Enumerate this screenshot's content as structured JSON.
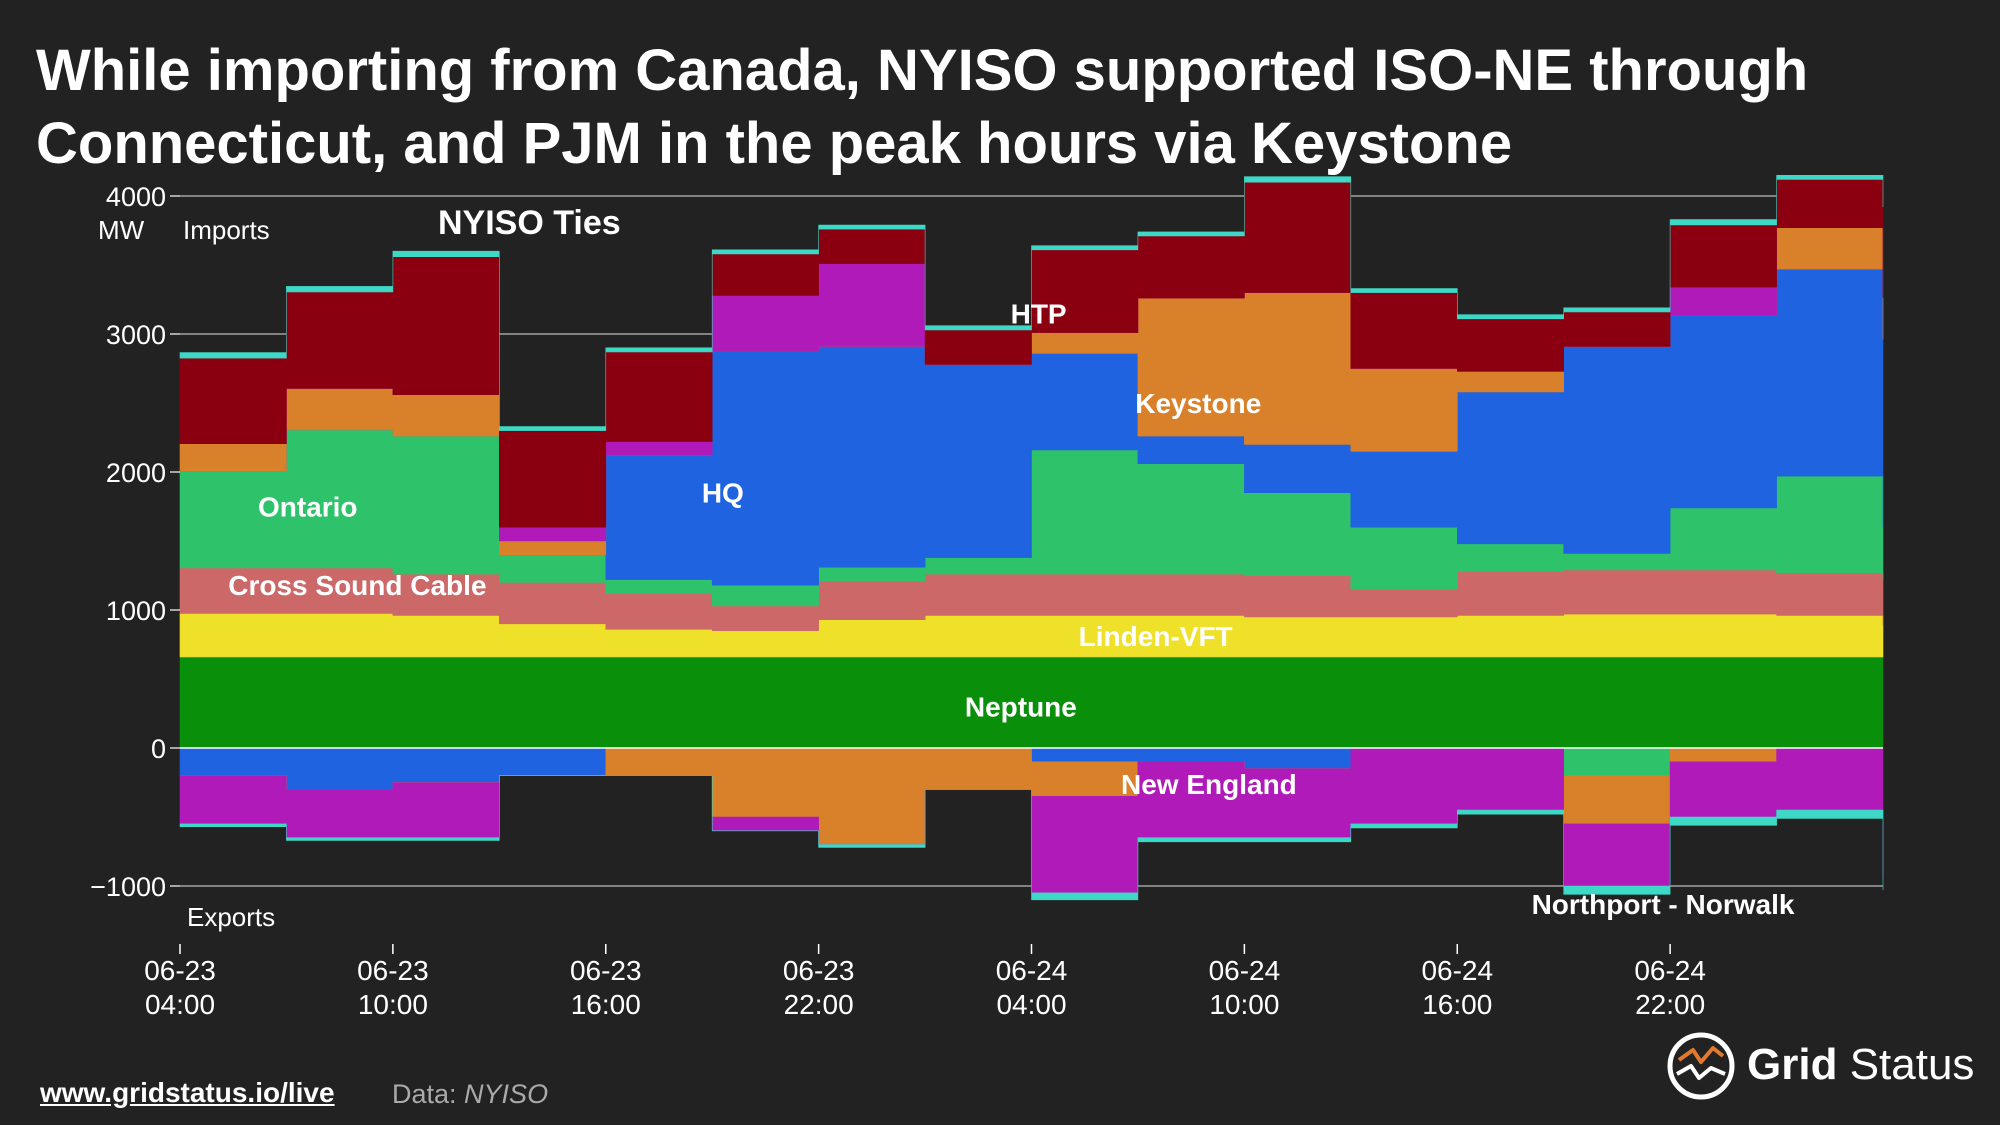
{
  "title": {
    "line1": "While importing from Canada, NYISO supported ISO-NE through",
    "line2": "Connecticut, and PJM in the peak hours via Keystone"
  },
  "footer": {
    "url": "www.gridstatus.io/live",
    "source_prefix": "Data: ",
    "source_name": "NYISO"
  },
  "logo": {
    "word1": "Grid",
    "word2": "Status"
  },
  "chart_data": {
    "type": "area",
    "stacked": true,
    "title": "NYISO Ties",
    "ylabel": "MW",
    "top_annotation": "Imports",
    "bottom_annotation": "Exports",
    "ylim": [
      -1400,
      4000
    ],
    "y_ticks": [
      4000,
      3000,
      2000,
      1000,
      0,
      -1000
    ],
    "y_tick_labels": [
      "4000",
      "3000",
      "2000",
      "1000",
      "0",
      "−1000"
    ],
    "x_hours": [
      0,
      3,
      6,
      9,
      12,
      15,
      18,
      21,
      24,
      27,
      30,
      33,
      36,
      39,
      42,
      45,
      48
    ],
    "x_range": [
      0,
      48
    ],
    "x_ticks": [
      {
        "h": 0,
        "date": "06-23",
        "time": "04:00"
      },
      {
        "h": 6,
        "date": "06-23",
        "time": "10:00"
      },
      {
        "h": 12,
        "date": "06-23",
        "time": "16:00"
      },
      {
        "h": 18,
        "date": "06-23",
        "time": "22:00"
      },
      {
        "h": 24,
        "date": "06-24",
        "time": "04:00"
      },
      {
        "h": 30,
        "date": "06-24",
        "time": "10:00"
      },
      {
        "h": 36,
        "date": "06-24",
        "time": "16:00"
      },
      {
        "h": 42,
        "date": "06-24",
        "time": "22:00"
      }
    ],
    "import_series": [
      {
        "name": "Neptune",
        "color": "#0a8f0a",
        "values": [
          660,
          660,
          660,
          660,
          660,
          660,
          660,
          660,
          660,
          660,
          660,
          660,
          660,
          660,
          660,
          660,
          660
        ]
      },
      {
        "name": "Linden-VFT",
        "color": "#efe12a",
        "values": [
          315,
          315,
          300,
          240,
          200,
          190,
          270,
          300,
          300,
          300,
          290,
          290,
          300,
          310,
          310,
          300,
          230
        ]
      },
      {
        "name": "Cross Sound Cable",
        "color": "#cd6868",
        "values": [
          330,
          330,
          300,
          300,
          260,
          180,
          280,
          300,
          300,
          300,
          300,
          200,
          320,
          320,
          320,
          310,
          330
        ]
      },
      {
        "name": "Ontario",
        "color": "#2ec36a",
        "values": [
          700,
          1000,
          1000,
          200,
          100,
          150,
          100,
          120,
          900,
          800,
          600,
          450,
          200,
          120,
          450,
          700,
          380
        ]
      },
      {
        "name": "HQ",
        "color": "#1f63e0",
        "values": [
          0,
          0,
          0,
          0,
          900,
          1700,
          1600,
          1400,
          700,
          200,
          350,
          550,
          1100,
          1500,
          1400,
          1500,
          1360
        ]
      },
      {
        "name": "Keystone",
        "color": "#d9812a",
        "values": [
          200,
          300,
          300,
          100,
          0,
          0,
          0,
          0,
          150,
          1000,
          1100,
          600,
          150,
          0,
          0,
          300,
          300
        ]
      },
      {
        "name": "New England",
        "color": "#b01ab8",
        "values": [
          0,
          0,
          0,
          100,
          100,
          400,
          600,
          0,
          0,
          0,
          0,
          0,
          0,
          0,
          200,
          0,
          0
        ]
      },
      {
        "name": "HTP",
        "color": "#8b0011",
        "values": [
          620,
          700,
          1000,
          700,
          650,
          300,
          250,
          250,
          600,
          450,
          800,
          550,
          380,
          250,
          450,
          350,
          660
        ]
      },
      {
        "name": "Northport - Norwalk",
        "color": "#3dd9c6",
        "values": [
          40,
          40,
          40,
          30,
          30,
          30,
          30,
          30,
          30,
          30,
          40,
          30,
          30,
          30,
          40,
          30,
          30
        ]
      }
    ],
    "export_series": [
      {
        "name": "HQ",
        "color": "#1f63e0",
        "values": [
          -200,
          -300,
          -250,
          -200,
          0,
          0,
          0,
          0,
          -100,
          -100,
          -150,
          0,
          0,
          0,
          0,
          0,
          0
        ]
      },
      {
        "name": "Ontario",
        "color": "#2ec36a",
        "values": [
          0,
          0,
          0,
          0,
          0,
          0,
          0,
          0,
          0,
          0,
          0,
          0,
          0,
          -200,
          0,
          0,
          0
        ]
      },
      {
        "name": "Keystone",
        "color": "#d9812a",
        "values": [
          0,
          0,
          0,
          0,
          -200,
          -500,
          -700,
          -300,
          -250,
          0,
          0,
          0,
          0,
          -350,
          -100,
          0,
          0
        ]
      },
      {
        "name": "New England",
        "color": "#b01ab8",
        "values": [
          -350,
          -350,
          -400,
          0,
          0,
          -100,
          0,
          0,
          -700,
          -550,
          -500,
          -550,
          -450,
          -450,
          -400,
          -450,
          -950
        ]
      },
      {
        "name": "Northport - Norwalk",
        "color": "#3dd9c6",
        "values": [
          -20,
          -20,
          -20,
          0,
          0,
          0,
          -20,
          0,
          -50,
          -30,
          -30,
          -30,
          -30,
          -60,
          -60,
          -60,
          -80
        ]
      }
    ],
    "series_labels": [
      {
        "text": "Ontario",
        "color": "#ffffff",
        "h": 3.6,
        "y": 1750
      },
      {
        "text": "Cross Sound Cable",
        "color": "#ffffff",
        "h": 5.0,
        "y": 1180
      },
      {
        "text": "HQ",
        "color": "#ffffff",
        "h": 15.3,
        "y": 1850
      },
      {
        "text": "HTP",
        "color": "#ffffff",
        "h": 24.2,
        "y": 3150
      },
      {
        "text": "Keystone",
        "color": "#ffffff",
        "h": 28.7,
        "y": 2500
      },
      {
        "text": "Linden-VFT",
        "color": "#ffffff",
        "h": 27.5,
        "y": 810
      },
      {
        "text": "Neptune",
        "color": "#ffffff",
        "h": 23.7,
        "y": 300
      },
      {
        "text": "New England",
        "color": "#ffffff",
        "h": 29.0,
        "y": -260
      },
      {
        "text": "Northport - Norwalk",
        "color": "#ffffff",
        "h": 41.8,
        "y": -1130
      }
    ]
  }
}
